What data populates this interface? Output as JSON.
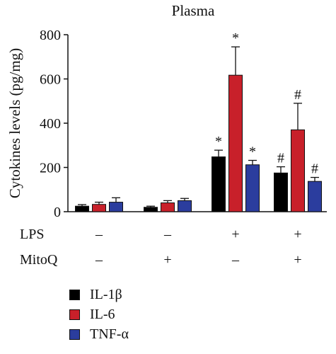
{
  "chart_data": {
    "type": "bar",
    "title": "Plasma",
    "ylabel": "Cytokines levels (pg/mg)",
    "ylim": [
      0,
      800
    ],
    "yticks": [
      "0",
      "200",
      "400",
      "600",
      "800"
    ],
    "groups": [
      {
        "lps": "–",
        "mitoq": "–"
      },
      {
        "lps": "–",
        "mitoq": "+"
      },
      {
        "lps": "+",
        "mitoq": "–"
      },
      {
        "lps": "+",
        "mitoq": "+"
      }
    ],
    "condition_labels": [
      "LPS",
      "MitoQ"
    ],
    "series": [
      {
        "name": "IL-1β",
        "color": "#000000",
        "values": [
          25,
          20,
          248,
          175
        ],
        "errors": [
          7,
          5,
          30,
          28
        ],
        "markers": [
          "",
          "",
          "*",
          "#"
        ]
      },
      {
        "name": "IL-6",
        "color": "#c8202a",
        "values": [
          33,
          40,
          617,
          370
        ],
        "errors": [
          10,
          10,
          128,
          120
        ],
        "markers": [
          "",
          "",
          "*",
          "#"
        ]
      },
      {
        "name": "TNF-α",
        "color": "#2b3d9e",
        "values": [
          43,
          50,
          212,
          137
        ],
        "errors": [
          20,
          10,
          20,
          18
        ],
        "markers": [
          "",
          "",
          "*",
          "#"
        ]
      }
    ]
  },
  "legend": [
    {
      "label": "IL-1β",
      "color": "#000000"
    },
    {
      "label": "IL-6",
      "color": "#c8202a"
    },
    {
      "label": "TNF-α",
      "color": "#2b3d9e"
    }
  ]
}
